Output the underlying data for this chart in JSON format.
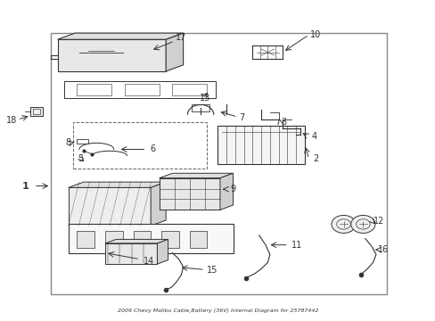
{
  "title": "2009 Chevy Malibu Cable,Battery (36V) Internal Diagram for 25787442",
  "bg_color": "#ffffff",
  "line_color": "#333333",
  "label_color": "#555555",
  "border_color": "#666666",
  "fig_width": 4.89,
  "fig_height": 3.6,
  "dpi": 100
}
